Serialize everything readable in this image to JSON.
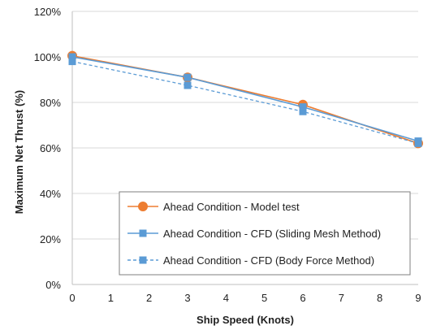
{
  "chart_data": {
    "type": "line",
    "xlabel": "Ship Speed (Knots)",
    "ylabel": "Maximum Net Thrust (%)",
    "xlim": [
      0,
      9
    ],
    "ylim": [
      0,
      120
    ],
    "x_ticks": [
      0,
      1,
      2,
      3,
      4,
      5,
      6,
      7,
      8,
      9
    ],
    "y_ticks": [
      0,
      20,
      40,
      60,
      80,
      100,
      120
    ],
    "y_tick_labels": [
      "0%",
      "20%",
      "40%",
      "60%",
      "80%",
      "100%",
      "120%"
    ],
    "grid": "horizontal",
    "legend_placement": "lower-left",
    "series": [
      {
        "name": "Ahead Condition - Model test",
        "x": [
          0,
          3,
          6,
          9
        ],
        "y": [
          100.5,
          91,
          79,
          62
        ],
        "color": "#ED7D31",
        "marker": "circle",
        "dash": "solid"
      },
      {
        "name": "Ahead Condition - CFD (Sliding Mesh Method)",
        "x": [
          0,
          3,
          6,
          9
        ],
        "y": [
          100,
          91,
          78,
          63
        ],
        "color": "#5B9BD5",
        "marker": "square",
        "dash": "solid"
      },
      {
        "name": "Ahead Condition - CFD (Body Force Method)",
        "x": [
          0,
          3,
          6,
          9
        ],
        "y": [
          98,
          87.5,
          76,
          62
        ],
        "color": "#5B9BD5",
        "marker": "square",
        "dash": "dashed"
      }
    ]
  }
}
